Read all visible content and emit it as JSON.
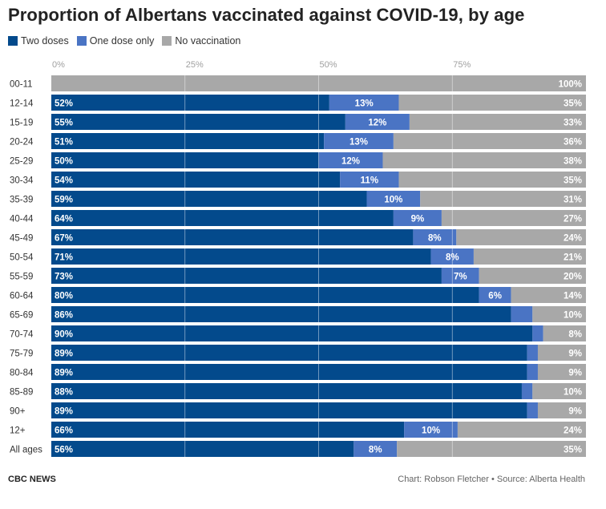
{
  "title": "Proportion of Albertans vaccinated against COVID-19, by age",
  "footer": {
    "left": "CBC NEWS",
    "right": "Chart: Robson Fletcher • Source: Alberta Health"
  },
  "colors": {
    "two_doses": "#034a8c",
    "one_dose": "#4a74c4",
    "no_vaccination": "#a8a8a8",
    "axis_text": "#a0a0a0",
    "grid": "#ffffff"
  },
  "chart_data": {
    "type": "bar",
    "orientation": "horizontal",
    "stacked": true,
    "title": "Proportion of Albertans vaccinated against COVID-19, by age",
    "xlim": [
      0,
      100
    ],
    "xticks": [
      0,
      25,
      50,
      75
    ],
    "xtick_labels": [
      "0%",
      "25%",
      "50%",
      "75%"
    ],
    "legend_position": "top-left",
    "categories": [
      "00-11",
      "12-14",
      "15-19",
      "20-24",
      "25-29",
      "30-34",
      "35-39",
      "40-44",
      "45-49",
      "50-54",
      "55-59",
      "60-64",
      "65-69",
      "70-74",
      "75-79",
      "80-84",
      "85-89",
      "90+",
      "12+",
      "All ages"
    ],
    "series": [
      {
        "name": "Two doses",
        "values": [
          0,
          52,
          55,
          51,
          50,
          54,
          59,
          64,
          67,
          71,
          73,
          80,
          86,
          90,
          89,
          89,
          88,
          89,
          66,
          56
        ],
        "labels": [
          "",
          "52%",
          "55%",
          "51%",
          "50%",
          "54%",
          "59%",
          "64%",
          "67%",
          "71%",
          "73%",
          "80%",
          "86%",
          "90%",
          "89%",
          "89%",
          "88%",
          "89%",
          "66%",
          "56%"
        ]
      },
      {
        "name": "One dose only",
        "values": [
          0,
          13,
          12,
          13,
          12,
          11,
          10,
          9,
          8,
          8,
          7,
          6,
          4,
          2,
          2,
          2,
          2,
          2,
          10,
          8
        ],
        "labels": [
          "",
          "13%",
          "12%",
          "13%",
          "12%",
          "11%",
          "10%",
          "9%",
          "8%",
          "8%",
          "7%",
          "6%",
          "",
          "",
          "",
          "",
          "",
          "",
          "10%",
          "8%"
        ]
      },
      {
        "name": "No vaccination",
        "values": [
          100,
          35,
          33,
          36,
          38,
          35,
          31,
          27,
          24,
          21,
          20,
          14,
          10,
          8,
          9,
          9,
          10,
          9,
          24,
          35
        ],
        "labels": [
          "100%",
          "35%",
          "33%",
          "36%",
          "38%",
          "35%",
          "31%",
          "27%",
          "24%",
          "21%",
          "20%",
          "14%",
          "10%",
          "8%",
          "9%",
          "9%",
          "10%",
          "9%",
          "24%",
          "35%"
        ]
      }
    ]
  }
}
